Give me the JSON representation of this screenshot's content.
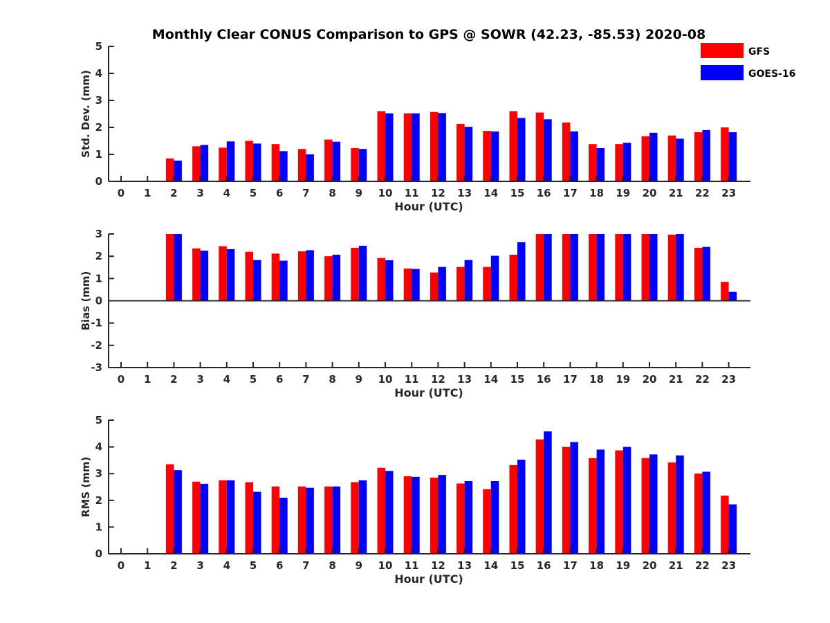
{
  "chart_data": {
    "title": "Monthly Clear CONUS Comparison to GPS @ SOWR (42.23, -85.53) 2020-08",
    "legend": [
      {
        "name": "GFS",
        "color": "#ff0000"
      },
      {
        "name": "GOES-16",
        "color": "#0000ff"
      }
    ],
    "legend_position": "top-right",
    "colors": {
      "GFS": "#ff0000",
      "GOES-16": "#0000ff"
    },
    "categories": [
      "0",
      "1",
      "2",
      "3",
      "4",
      "5",
      "6",
      "7",
      "8",
      "9",
      "10",
      "11",
      "12",
      "13",
      "14",
      "15",
      "16",
      "17",
      "18",
      "19",
      "20",
      "21",
      "22",
      "23"
    ],
    "panels": [
      {
        "type": "bar",
        "xlabel": "Hour (UTC)",
        "ylabel": "Std. Dev. (mm)",
        "ylim": [
          0,
          5
        ],
        "yticks": [
          "0",
          "1",
          "2",
          "3",
          "4",
          "5"
        ],
        "grid": false,
        "series": [
          {
            "name": "GFS",
            "values": [
              null,
              null,
              0.85,
              1.3,
              1.25,
              1.5,
              1.38,
              1.2,
              1.55,
              1.23,
              2.6,
              2.52,
              2.57,
              2.13,
              1.87,
              2.6,
              2.55,
              2.18,
              1.38,
              1.38,
              1.67,
              1.7,
              1.82,
              2.0
            ]
          },
          {
            "name": "GOES-16",
            "values": [
              null,
              null,
              0.77,
              1.35,
              1.48,
              1.4,
              1.12,
              1.0,
              1.47,
              1.2,
              2.52,
              2.52,
              2.53,
              2.02,
              1.85,
              2.35,
              2.3,
              1.85,
              1.23,
              1.43,
              1.8,
              1.58,
              1.9,
              1.82
            ]
          }
        ]
      },
      {
        "type": "bar",
        "xlabel": "Hour (UTC)",
        "ylabel": "Bias (mm)",
        "ylim": [
          -3,
          3
        ],
        "yticks": [
          "-3",
          "-2",
          "-1",
          "0",
          "1",
          "2",
          "3"
        ],
        "grid": false,
        "series": [
          {
            "name": "GFS",
            "values": [
              null,
              null,
              3.0,
              2.35,
              2.45,
              2.2,
              2.12,
              2.22,
              2.0,
              2.38,
              1.92,
              1.45,
              1.27,
              1.52,
              1.52,
              2.07,
              3.0,
              3.0,
              3.0,
              3.0,
              3.0,
              2.97,
              2.38,
              0.85
            ]
          },
          {
            "name": "GOES-16",
            "values": [
              null,
              null,
              3.0,
              2.25,
              2.32,
              1.83,
              1.8,
              2.27,
              2.07,
              2.47,
              1.82,
              1.43,
              1.52,
              1.83,
              2.02,
              2.63,
              3.0,
              3.0,
              3.0,
              3.0,
              3.0,
              3.0,
              2.42,
              0.4
            ]
          }
        ]
      },
      {
        "type": "bar",
        "xlabel": "Hour (UTC)",
        "ylabel": "RMS (mm)",
        "ylim": [
          0,
          5
        ],
        "yticks": [
          "0",
          "1",
          "2",
          "3",
          "4",
          "5"
        ],
        "grid": false,
        "series": [
          {
            "name": "GFS",
            "values": [
              null,
              null,
              3.35,
              2.7,
              2.75,
              2.68,
              2.52,
              2.52,
              2.52,
              2.68,
              3.22,
              2.9,
              2.85,
              2.63,
              2.42,
              3.32,
              4.28,
              4.0,
              3.58,
              3.87,
              3.58,
              3.42,
              3.0,
              2.18
            ]
          },
          {
            "name": "GOES-16",
            "values": [
              null,
              null,
              3.13,
              2.62,
              2.75,
              2.32,
              2.1,
              2.47,
              2.52,
              2.75,
              3.1,
              2.88,
              2.95,
              2.72,
              2.72,
              3.52,
              4.58,
              4.18,
              3.9,
              4.0,
              3.72,
              3.68,
              3.07,
              1.85
            ]
          }
        ]
      }
    ]
  }
}
